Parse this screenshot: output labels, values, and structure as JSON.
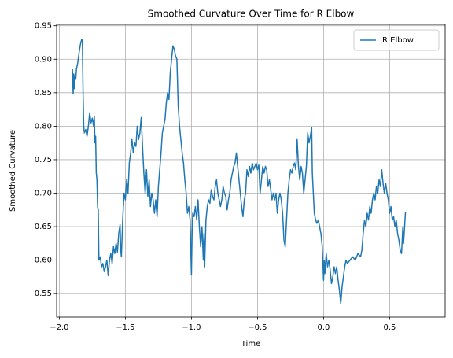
{
  "chart_data": {
    "type": "line",
    "title": "Smoothed Curvature Over Time for R Elbow",
    "xlabel": "Time",
    "ylabel": "Smoothed Curvature",
    "grid": true,
    "legend": "upper right",
    "xlim": [
      -2.02,
      0.92
    ],
    "ylim": [
      0.515,
      0.952
    ],
    "xticks": [
      {
        "value": -2.0,
        "label": "−2.0"
      },
      {
        "value": -1.5,
        "label": "−1.5"
      },
      {
        "value": -1.0,
        "label": "−1.0"
      },
      {
        "value": -0.5,
        "label": "−0.5"
      },
      {
        "value": 0.0,
        "label": "0.0"
      },
      0.5
    ],
    "yticks": [
      0.55,
      {
        "value": 0.6,
        "label": "0.60"
      },
      0.65,
      {
        "value": 0.7,
        "label": "0.70"
      },
      0.75,
      {
        "value": 0.8,
        "label": "0.80"
      },
      0.85,
      {
        "value": 0.9,
        "label": "0.90"
      },
      0.95
    ],
    "x": [
      -1.9,
      -1.895,
      -1.89,
      -1.885,
      -1.88,
      -1.875,
      -1.87,
      -1.86,
      -1.85,
      -1.84,
      -1.83,
      -1.825,
      -1.82,
      -1.815,
      -1.81,
      -1.8,
      -1.79,
      -1.78,
      -1.77,
      -1.76,
      -1.75,
      -1.74,
      -1.735,
      -1.73,
      -1.725,
      -1.72,
      -1.715,
      -1.71,
      -1.705,
      -1.7,
      -1.69,
      -1.68,
      -1.67,
      -1.66,
      -1.65,
      -1.64,
      -1.63,
      -1.62,
      -1.61,
      -1.6,
      -1.59,
      -1.58,
      -1.57,
      -1.56,
      -1.55,
      -1.54,
      -1.535,
      -1.53,
      -1.52,
      -1.51,
      -1.5,
      -1.49,
      -1.48,
      -1.47,
      -1.46,
      -1.45,
      -1.44,
      -1.43,
      -1.42,
      -1.41,
      -1.4,
      -1.39,
      -1.38,
      -1.37,
      -1.36,
      -1.35,
      -1.34,
      -1.33,
      -1.32,
      -1.31,
      -1.3,
      -1.29,
      -1.28,
      -1.27,
      -1.26,
      -1.25,
      -1.24,
      -1.23,
      -1.22,
      -1.21,
      -1.2,
      -1.19,
      -1.18,
      -1.17,
      -1.16,
      -1.15,
      -1.14,
      -1.13,
      -1.12,
      -1.11,
      -1.1,
      -1.09,
      -1.08,
      -1.07,
      -1.06,
      -1.05,
      -1.04,
      -1.03,
      -1.02,
      -1.01,
      -1.0,
      -0.995,
      -0.99,
      -0.98,
      -0.97,
      -0.96,
      -0.95,
      -0.94,
      -0.93,
      -0.92,
      -0.91,
      -0.905,
      -0.9,
      -0.89,
      -0.88,
      -0.87,
      -0.86,
      -0.85,
      -0.84,
      -0.83,
      -0.82,
      -0.81,
      -0.8,
      -0.79,
      -0.78,
      -0.77,
      -0.76,
      -0.75,
      -0.74,
      -0.73,
      -0.72,
      -0.71,
      -0.7,
      -0.69,
      -0.68,
      -0.67,
      -0.66,
      -0.65,
      -0.64,
      -0.63,
      -0.62,
      -0.61,
      -0.6,
      -0.59,
      -0.58,
      -0.57,
      -0.56,
      -0.55,
      -0.54,
      -0.53,
      -0.52,
      -0.51,
      -0.5,
      -0.49,
      -0.48,
      -0.47,
      -0.46,
      -0.45,
      -0.44,
      -0.43,
      -0.42,
      -0.41,
      -0.4,
      -0.39,
      -0.38,
      -0.37,
      -0.36,
      -0.35,
      -0.34,
      -0.33,
      -0.32,
      -0.31,
      -0.3,
      -0.29,
      -0.28,
      -0.27,
      -0.26,
      -0.25,
      -0.24,
      -0.23,
      -0.22,
      -0.21,
      -0.2,
      -0.19,
      -0.18,
      -0.17,
      -0.16,
      -0.15,
      -0.14,
      -0.13,
      -0.12,
      -0.11,
      -0.1,
      -0.09,
      -0.085,
      -0.08,
      -0.07,
      -0.06,
      -0.05,
      -0.04,
      -0.03,
      -0.02,
      -0.01,
      0.0,
      0.005,
      0.01,
      0.02,
      0.03,
      0.04,
      0.05,
      0.06,
      0.07,
      0.08,
      0.09,
      0.1,
      0.11,
      0.12,
      0.13,
      0.14,
      0.15,
      0.16,
      0.17,
      0.18,
      0.2,
      0.22,
      0.24,
      0.26,
      0.28,
      0.29,
      0.3,
      0.31,
      0.32,
      0.33,
      0.34,
      0.35,
      0.36,
      0.37,
      0.38,
      0.39,
      0.4,
      0.41,
      0.42,
      0.43,
      0.44,
      0.45,
      0.46,
      0.47,
      0.48,
      0.49,
      0.5,
      0.51,
      0.52,
      0.53,
      0.54,
      0.55,
      0.56,
      0.57,
      0.58,
      0.59,
      0.6,
      0.605,
      0.61,
      0.62
    ],
    "series": [
      {
        "name": "R Elbow",
        "color": "#1f77b4",
        "values": [
          0.885,
          0.848,
          0.878,
          0.856,
          0.875,
          0.87,
          0.885,
          0.895,
          0.91,
          0.922,
          0.93,
          0.927,
          0.85,
          0.8,
          0.79,
          0.795,
          0.785,
          0.8,
          0.82,
          0.805,
          0.812,
          0.8,
          0.815,
          0.775,
          0.785,
          0.73,
          0.72,
          0.68,
          0.675,
          0.6,
          0.605,
          0.59,
          0.595,
          0.583,
          0.59,
          0.6,
          0.577,
          0.6,
          0.61,
          0.595,
          0.62,
          0.61,
          0.625,
          0.612,
          0.64,
          0.653,
          0.615,
          0.605,
          0.66,
          0.7,
          0.69,
          0.72,
          0.7,
          0.745,
          0.76,
          0.78,
          0.76,
          0.775,
          0.77,
          0.8,
          0.78,
          0.79,
          0.813,
          0.77,
          0.73,
          0.7,
          0.735,
          0.695,
          0.72,
          0.68,
          0.7,
          0.69,
          0.67,
          0.69,
          0.665,
          0.71,
          0.735,
          0.76,
          0.79,
          0.8,
          0.81,
          0.835,
          0.85,
          0.84,
          0.88,
          0.9,
          0.92,
          0.915,
          0.905,
          0.9,
          0.83,
          0.8,
          0.78,
          0.76,
          0.745,
          0.72,
          0.7,
          0.67,
          0.68,
          0.66,
          0.578,
          0.64,
          0.67,
          0.665,
          0.68,
          0.66,
          0.69,
          0.65,
          0.62,
          0.65,
          0.6,
          0.64,
          0.59,
          0.66,
          0.68,
          0.69,
          0.685,
          0.705,
          0.695,
          0.69,
          0.71,
          0.72,
          0.7,
          0.69,
          0.68,
          0.69,
          0.71,
          0.7,
          0.695,
          0.675,
          0.69,
          0.7,
          0.72,
          0.73,
          0.74,
          0.745,
          0.76,
          0.74,
          0.72,
          0.7,
          0.68,
          0.665,
          0.69,
          0.7,
          0.735,
          0.725,
          0.74,
          0.73,
          0.745,
          0.735,
          0.74,
          0.745,
          0.735,
          0.742,
          0.7,
          0.72,
          0.74,
          0.73,
          0.74,
          0.735,
          0.71,
          0.72,
          0.705,
          0.69,
          0.7,
          0.69,
          0.7,
          0.67,
          0.69,
          0.7,
          0.69,
          0.67,
          0.63,
          0.62,
          0.66,
          0.7,
          0.72,
          0.735,
          0.73,
          0.74,
          0.745,
          0.735,
          0.78,
          0.74,
          0.72,
          0.74,
          0.73,
          0.7,
          0.72,
          0.74,
          0.79,
          0.775,
          0.785,
          0.798,
          0.73,
          0.71,
          0.67,
          0.66,
          0.655,
          0.66,
          0.65,
          0.64,
          0.62,
          0.57,
          0.6,
          0.58,
          0.61,
          0.59,
          0.6,
          0.585,
          0.565,
          0.575,
          0.59,
          0.58,
          0.59,
          0.57,
          0.555,
          0.535,
          0.56,
          0.575,
          0.59,
          0.6,
          0.595,
          0.6,
          0.605,
          0.6,
          0.61,
          0.605,
          0.615,
          0.64,
          0.66,
          0.65,
          0.67,
          0.66,
          0.68,
          0.67,
          0.69,
          0.7,
          0.69,
          0.71,
          0.7,
          0.72,
          0.71,
          0.735,
          0.715,
          0.7,
          0.715,
          0.7,
          0.69,
          0.67,
          0.68,
          0.66,
          0.665,
          0.65,
          0.66,
          0.64,
          0.63,
          0.615,
          0.61,
          0.65,
          0.625,
          0.64,
          0.672
        ]
      }
    ]
  }
}
